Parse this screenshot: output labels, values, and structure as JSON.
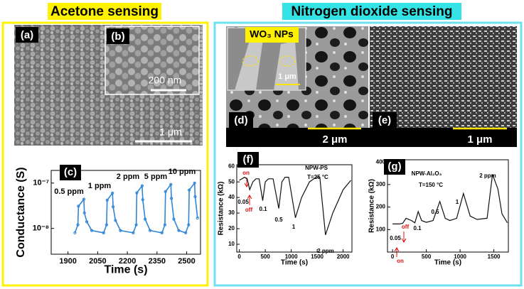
{
  "headings": [
    "Acetone sensing",
    "Nitrogen dioxide sensing"
  ],
  "panels": {
    "a": "(a)",
    "b": "(b)",
    "d": "(d)",
    "e": "(e)",
    "wo3": "WO₃ NPs",
    "scale_bars": [
      "200 nm",
      "1 μm",
      "1 μm",
      "2 μm",
      "1 μm"
    ]
  },
  "chart_data": [
    {
      "type": "line",
      "panel_label": "(c)",
      "x_label": "Time (s)",
      "y_label": "Conductance (S)",
      "ylog": true,
      "x": [
        1935,
        1950,
        1953,
        1980,
        1983,
        1995,
        2020,
        2080,
        2095,
        2098,
        2125,
        2128,
        2140,
        2165,
        2230,
        2245,
        2248,
        2275,
        2278,
        2290,
        2315,
        2375,
        2390,
        2393,
        2420,
        2423,
        2435,
        2460,
        2495,
        2510,
        2513,
        2540,
        2543,
        2555
      ],
      "series": [
        {
          "color": "#2f86d6",
          "values": [
            8e-09,
            1.2e-08,
            3.1e-08,
            4.4e-08,
            2.2e-08,
            1.4e-08,
            9e-09,
            8e-09,
            1.2e-08,
            4.2e-08,
            6e-08,
            3e-08,
            1.5e-08,
            9e-09,
            8e-09,
            1.2e-08,
            6.1e-08,
            8.7e-08,
            4.3e-08,
            1.6e-08,
            9e-09,
            8e-09,
            1.2e-08,
            6.5e-08,
            9.3e-08,
            4.6e-08,
            1.6e-08,
            9e-09,
            8e-09,
            1.2e-08,
            7e-08,
            1e-07,
            5e-08,
            1.7e-08
          ]
        }
      ],
      "xlim": [
        1815,
        2570
      ],
      "xticks": [
        1900,
        2050,
        2200,
        2350,
        2500
      ],
      "ylim": [
        2.7e-09,
        1.9e-07
      ],
      "yticks": [
        {
          "value": 1e-08,
          "label": "10⁻⁸"
        },
        {
          "value": 1e-07,
          "label": "10⁻⁷"
        }
      ],
      "annotations": [
        "0.5 ppm",
        "1 ppm",
        "2 ppm",
        "5 ppm",
        "10 ppm"
      ]
    },
    {
      "type": "line",
      "panel_label": "(f)",
      "x_label": "Time (s)",
      "y_label": "Resistance (kΩ)",
      "x": [
        0,
        100,
        150,
        200,
        260,
        320,
        380,
        450,
        500,
        560,
        650,
        760,
        820,
        880,
        950,
        1080,
        1200,
        1350,
        1480,
        1550,
        1660,
        1800,
        2000,
        2150
      ],
      "series": [
        {
          "color": "#111111",
          "values": [
            51,
            53,
            52,
            45,
            50,
            52,
            52,
            38,
            50,
            52,
            52,
            33,
            50,
            53,
            53,
            27,
            40,
            50,
            53,
            53,
            16,
            30,
            45,
            51
          ]
        }
      ],
      "xlim": [
        -50,
        2170
      ],
      "xticks": [
        0,
        500,
        1000,
        1500,
        2000
      ],
      "ylim": [
        5,
        61
      ],
      "yticks": [
        10,
        20,
        30,
        40,
        50,
        60
      ],
      "annotations": [
        "on",
        "off",
        "0.05",
        "0.1",
        "0.5",
        "1",
        "2 ppm",
        "NPW-PS",
        "T=25 °C"
      ]
    },
    {
      "type": "line",
      "panel_label": "(g)",
      "x_label": "Time (s)",
      "y_label": "Resistance (kΩ)",
      "x": [
        0,
        100,
        150,
        200,
        280,
        330,
        380,
        430,
        500,
        600,
        700,
        780,
        850,
        950,
        1050,
        1150,
        1250,
        1400,
        1480,
        1560,
        1620,
        1700
      ],
      "series": [
        {
          "color": "#111111",
          "values": [
            125,
            125,
            128,
            150,
            140,
            130,
            180,
            140,
            132,
            140,
            225,
            150,
            140,
            150,
            260,
            160,
            145,
            150,
            345,
            280,
            170,
            130
          ]
        }
      ],
      "xlim": [
        -75,
        1715
      ],
      "xticks": [
        0,
        500,
        1000,
        1500
      ],
      "ylim": [
        0,
        410
      ],
      "yticks": [
        100,
        200,
        300,
        400
      ],
      "annotations": [
        "0.05",
        "off",
        "on",
        "0.1",
        "0.5",
        "1",
        "2 ppm",
        "NPW-Al₂O₃",
        "T=150 °C"
      ]
    }
  ]
}
